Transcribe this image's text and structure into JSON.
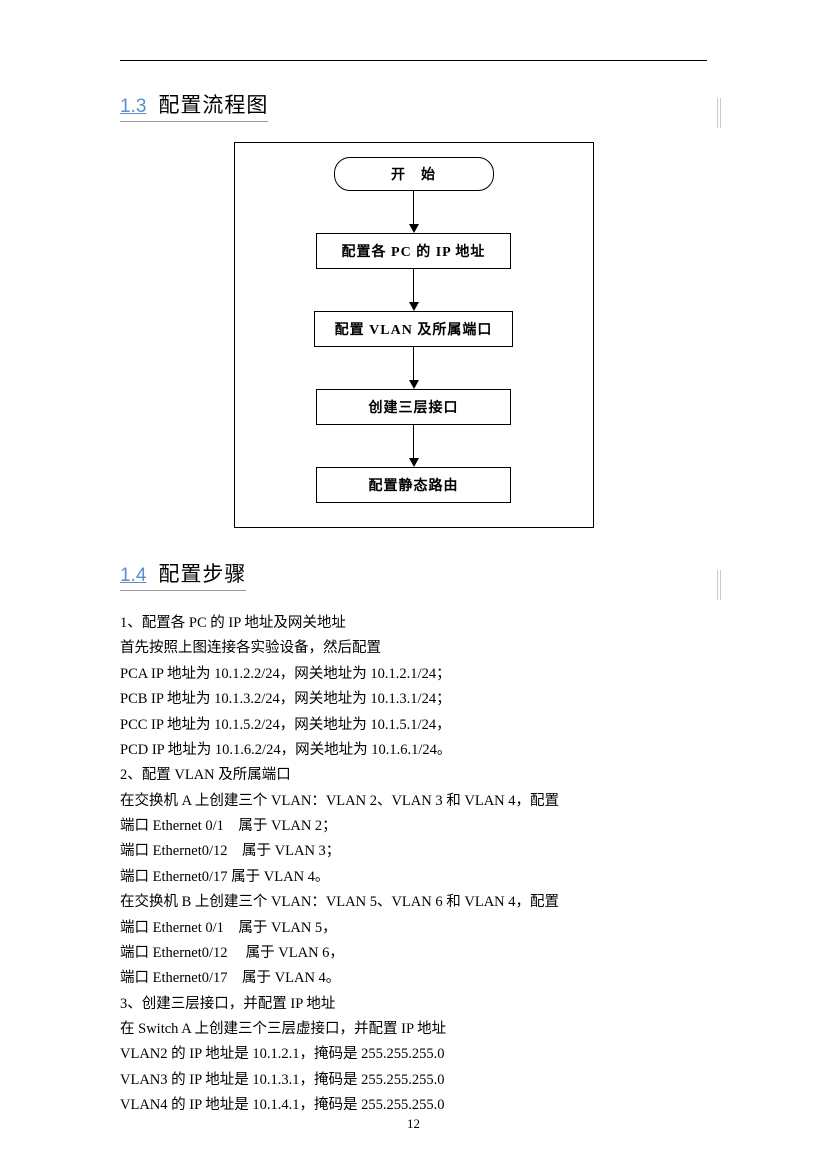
{
  "sections": {
    "s1": {
      "num": "1.3",
      "title": "配置流程图"
    },
    "s2": {
      "num": "1.4",
      "title": "配置步骤"
    }
  },
  "flowchart": {
    "type": "flowchart",
    "border_color": "#000000",
    "box_border_width": 1.5,
    "background_color": "#ffffff",
    "nodes": {
      "n0": {
        "label": "开　始",
        "shape": "rounded"
      },
      "n1": {
        "label": "配置各 PC 的 IP 地址",
        "shape": "rect"
      },
      "n2": {
        "label": "配置 VLAN 及所属端口",
        "shape": "rect"
      },
      "n3": {
        "label": "创建三层接口",
        "shape": "rect"
      },
      "n4": {
        "label": "配置静态路由",
        "shape": "rect"
      }
    }
  },
  "body": {
    "p1": "1、配置各 PC 的 IP 地址及网关地址",
    "p2": "首先按照上图连接各实验设备，然后配置",
    "p3": "PCA IP 地址为 10.1.2.2/24，网关地址为 10.1.2.1/24；",
    "p4": "PCB IP 地址为 10.1.3.2/24，网关地址为 10.1.3.1/24；",
    "p5": "PCC IP 地址为 10.1.5.2/24，网关地址为 10.1.5.1/24，",
    "p6": "PCD IP 地址为 10.1.6.2/24，网关地址为 10.1.6.1/24。",
    "p7": "2、配置 VLAN 及所属端口",
    "p8": "在交换机 A 上创建三个 VLAN：VLAN 2、VLAN 3 和 VLAN 4，配置",
    "p9": "端口 Ethernet 0/1　属于 VLAN 2；",
    "p10": "端口 Ethernet0/12　属于 VLAN 3；",
    "p11": "端口 Ethernet0/17  属于 VLAN 4。",
    "p12": "在交换机 B 上创建三个 VLAN：VLAN 5、VLAN 6 和 VLAN 4，配置",
    "p13": "端口 Ethernet 0/1　属于 VLAN 5，",
    "p14": "端口 Ethernet0/12　  属于 VLAN 6，",
    "p15": "端口 Ethernet0/17　属于 VLAN 4。",
    "p16": "3、创建三层接口，并配置 IP 地址",
    "p17": "在 Switch A 上创建三个三层虚接口，并配置 IP 地址",
    "p18": "VLAN2 的 IP 地址是 10.1.2.1，掩码是 255.255.255.0",
    "p19": "VLAN3 的 IP 地址是 10.1.3.1，掩码是 255.255.255.0",
    "p20": "VLAN4 的 IP 地址是 10.1.4.1，掩码是 255.255.255.0"
  },
  "page_number": "12"
}
